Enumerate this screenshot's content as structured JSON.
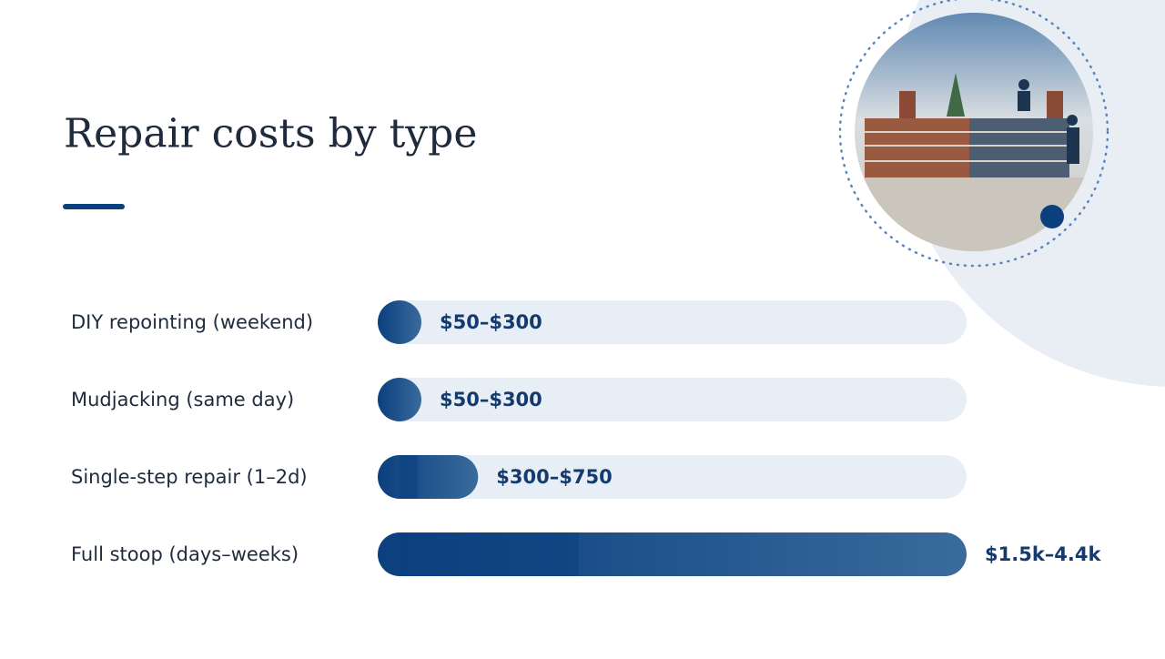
{
  "chart_data": {
    "type": "range-bar",
    "title": "Repair costs by type",
    "categories": [
      "DIY repointing (weekend)",
      "Mudjacking (same day)",
      "Single-step repair (1–2d)",
      "Full stoop (days–weeks)"
    ],
    "low": [
      50,
      50,
      300,
      1500
    ],
    "high": [
      300,
      300,
      750,
      4400
    ],
    "value_labels": [
      "$50–$300",
      "$50–$300",
      "$300–$750",
      "$1.5k–4.4k"
    ],
    "xlim": [
      0,
      4400
    ],
    "color": "#0b3f7e"
  }
}
